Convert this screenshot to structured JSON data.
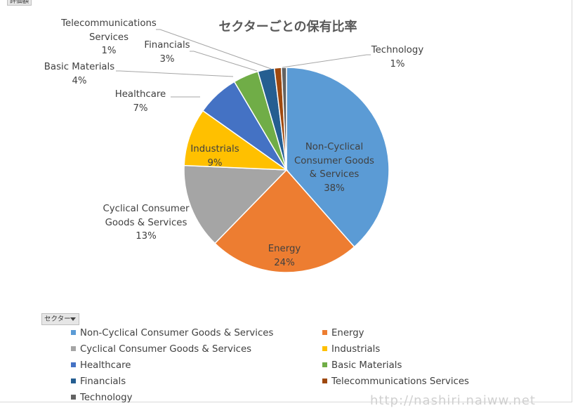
{
  "field_button": {
    "label": "評価額"
  },
  "legend_button": {
    "label": "セクター"
  },
  "watermark": "http://nashiri.naiww.net",
  "chart_data": {
    "type": "pie",
    "title": "セクターごとの保有比率",
    "legend_position": "bottom",
    "slices": [
      {
        "name": "Non-Cyclical Consumer Goods & Services",
        "label": "Non-Cyclical\nConsumer Goods\n& Services",
        "percent_label": "38%",
        "value": 38.5,
        "color": "#5B9BD5"
      },
      {
        "name": "Energy",
        "label": "Energy",
        "percent_label": "24%",
        "value": 23.8,
        "color": "#ED7D31"
      },
      {
        "name": "Cyclical Consumer Goods & Services",
        "label": "Cyclical Consumer\nGoods & Services",
        "percent_label": "13%",
        "value": 13.4,
        "color": "#A5A5A5"
      },
      {
        "name": "Industrials",
        "label": "Industrials",
        "percent_label": "9%",
        "value": 9.1,
        "color": "#FFC000"
      },
      {
        "name": "Healthcare",
        "label": "Healthcare",
        "percent_label": "7%",
        "value": 6.7,
        "color": "#4472C4"
      },
      {
        "name": "Basic Materials",
        "label": "Basic Materials",
        "percent_label": "4%",
        "value": 4.0,
        "color": "#70AD47"
      },
      {
        "name": "Financials",
        "label": "Financials",
        "percent_label": "3%",
        "value": 2.6,
        "color": "#255E91"
      },
      {
        "name": "Telecommunications Services",
        "label": "Telecommunications\nServices",
        "percent_label": "1%",
        "value": 1.1,
        "color": "#9E480E"
      },
      {
        "name": "Technology",
        "label": "Technology",
        "percent_label": "1%",
        "value": 0.8,
        "color": "#636363"
      }
    ]
  }
}
